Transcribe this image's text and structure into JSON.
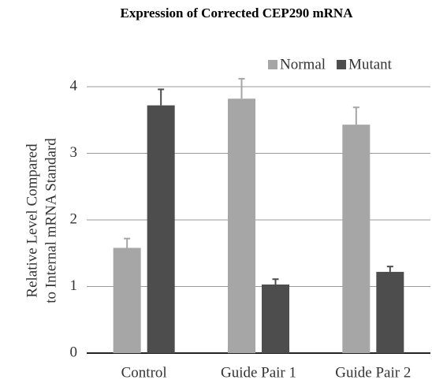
{
  "chart_data": {
    "type": "bar",
    "title": "Expression of Corrected CEP290 mRNA",
    "ylabel": [
      "Relative Level Compared",
      "to Internal mRNA Standard"
    ],
    "categories": [
      "Control",
      "Guide Pair 1",
      "Guide Pair 2"
    ],
    "series": [
      {
        "name": "Normal",
        "color": "#a6a6a6",
        "values": [
          1.58,
          3.82,
          3.43
        ],
        "errors": [
          0.14,
          0.3,
          0.26
        ]
      },
      {
        "name": "Mutant",
        "color": "#4d4d4d",
        "values": [
          3.72,
          1.03,
          1.22
        ],
        "errors": [
          0.24,
          0.08,
          0.08
        ]
      }
    ],
    "ylim": [
      0,
      4
    ],
    "yticks": [
      0,
      1,
      2,
      3,
      4
    ],
    "grid": true,
    "legend": "top-right"
  }
}
